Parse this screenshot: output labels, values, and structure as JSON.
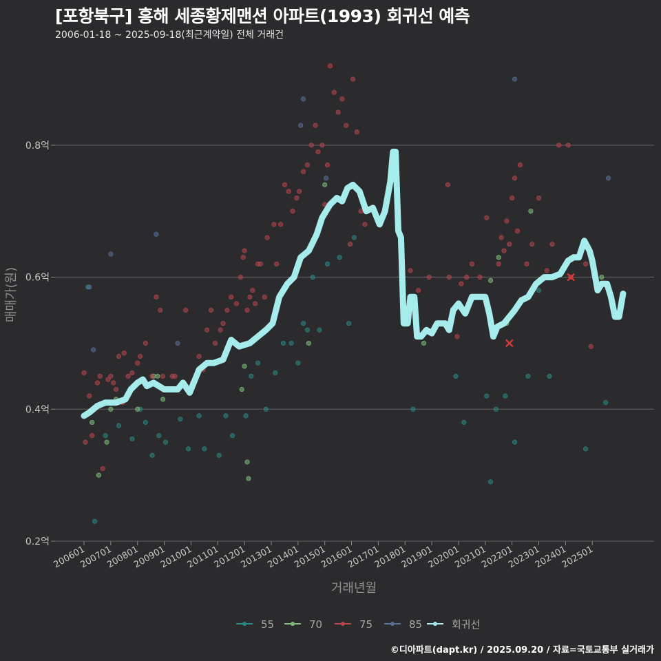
{
  "title": "[포항북구] 흥해 세종황제맨션 아파트(1993) 회귀선 예측",
  "subtitle": "2006-01-18 ~ 2025-09-18(최근계약일) 전체 거래건",
  "caption": "©디아파트(dapt.kr) / 2025.09.20 / 자료=국토교통부 실거래가",
  "chart_data": {
    "type": "scatter",
    "xlabel": "거래년월",
    "ylabel": "매매가(원)",
    "ylim": [
      0.2,
      0.9
    ],
    "y_ticks": [
      {
        "value": 0.2,
        "label": "0.2억"
      },
      {
        "value": 0.4,
        "label": "0.4억"
      },
      {
        "value": 0.6,
        "label": "0.6억"
      },
      {
        "value": 0.8,
        "label": "0.8억"
      }
    ],
    "x_ticks": [
      "200601",
      "200701",
      "200801",
      "200901",
      "201001",
      "201101",
      "201201",
      "201301",
      "201401",
      "201501",
      "201601",
      "201701",
      "201801",
      "201901",
      "202001",
      "202101",
      "202201",
      "202301",
      "202401",
      "202501"
    ],
    "grid": true,
    "legend_position": "bottom",
    "series": [
      {
        "name": "55",
        "color": "#2a8a86",
        "points": [
          [
            2006.15,
            0.585
          ],
          [
            2006.4,
            0.23
          ],
          [
            2006.8,
            0.36
          ],
          [
            2007.3,
            0.375
          ],
          [
            2007.8,
            0.355
          ],
          [
            2008.1,
            0.4
          ],
          [
            2008.3,
            0.38
          ],
          [
            2008.55,
            0.33
          ],
          [
            2008.8,
            0.36
          ],
          [
            2009.05,
            0.35
          ],
          [
            2009.6,
            0.385
          ],
          [
            2009.9,
            0.34
          ],
          [
            2010.3,
            0.39
          ],
          [
            2010.5,
            0.34
          ],
          [
            2011.05,
            0.33
          ],
          [
            2011.3,
            0.39
          ],
          [
            2011.55,
            0.36
          ],
          [
            2012.05,
            0.39
          ],
          [
            2012.25,
            0.45
          ],
          [
            2012.5,
            0.47
          ],
          [
            2012.8,
            0.4
          ],
          [
            2013.15,
            0.455
          ],
          [
            2013.45,
            0.5
          ],
          [
            2013.75,
            0.5
          ],
          [
            2014.0,
            0.47
          ],
          [
            2014.2,
            0.53
          ],
          [
            2014.35,
            0.52
          ],
          [
            2014.55,
            0.6
          ],
          [
            2014.8,
            0.52
          ],
          [
            2015.1,
            0.62
          ],
          [
            2015.55,
            0.63
          ],
          [
            2015.9,
            0.53
          ],
          [
            2016.1,
            0.66
          ],
          [
            2018.3,
            0.4
          ],
          [
            2019.9,
            0.45
          ],
          [
            2020.2,
            0.38
          ],
          [
            2021.05,
            0.42
          ],
          [
            2021.2,
            0.29
          ],
          [
            2021.4,
            0.4
          ],
          [
            2021.75,
            0.42
          ],
          [
            2022.1,
            0.35
          ],
          [
            2022.6,
            0.45
          ],
          [
            2023.0,
            0.58
          ],
          [
            2023.4,
            0.45
          ],
          [
            2024.75,
            0.34
          ],
          [
            2025.5,
            0.41
          ]
        ]
      },
      {
        "name": "70",
        "color": "#7fc17a",
        "points": [
          [
            2006.3,
            0.38
          ],
          [
            2006.55,
            0.3
          ],
          [
            2006.85,
            0.35
          ],
          [
            2007.0,
            0.4
          ],
          [
            2007.2,
            0.415
          ],
          [
            2008.0,
            0.4
          ],
          [
            2008.6,
            0.45
          ],
          [
            2008.75,
            0.45
          ],
          [
            2008.95,
            0.415
          ],
          [
            2011.9,
            0.43
          ],
          [
            2012.0,
            0.465
          ],
          [
            2012.1,
            0.32
          ],
          [
            2012.15,
            0.295
          ],
          [
            2014.4,
            0.5
          ],
          [
            2015.0,
            0.74
          ],
          [
            2018.7,
            0.5
          ],
          [
            2021.2,
            0.595
          ],
          [
            2021.5,
            0.63
          ],
          [
            2021.8,
            0.53
          ],
          [
            2022.7,
            0.7
          ],
          [
            2025.35,
            0.6
          ]
        ]
      },
      {
        "name": "75",
        "color": "#b8474c",
        "points": [
          [
            2006.0,
            0.455
          ],
          [
            2006.05,
            0.35
          ],
          [
            2006.2,
            0.42
          ],
          [
            2006.3,
            0.36
          ],
          [
            2006.5,
            0.44
          ],
          [
            2006.6,
            0.45
          ],
          [
            2006.7,
            0.31
          ],
          [
            2006.9,
            0.445
          ],
          [
            2007.0,
            0.45
          ],
          [
            2007.1,
            0.44
          ],
          [
            2007.2,
            0.43
          ],
          [
            2007.3,
            0.48
          ],
          [
            2007.45,
            0.41
          ],
          [
            2007.5,
            0.485
          ],
          [
            2007.65,
            0.45
          ],
          [
            2007.8,
            0.455
          ],
          [
            2008.0,
            0.47
          ],
          [
            2008.1,
            0.48
          ],
          [
            2008.3,
            0.5
          ],
          [
            2008.55,
            0.45
          ],
          [
            2008.7,
            0.57
          ],
          [
            2008.85,
            0.55
          ],
          [
            2008.95,
            0.45
          ],
          [
            2009.3,
            0.45
          ],
          [
            2009.4,
            0.45
          ],
          [
            2009.8,
            0.55
          ],
          [
            2010.05,
            0.44
          ],
          [
            2010.3,
            0.48
          ],
          [
            2010.45,
            0.46
          ],
          [
            2010.6,
            0.52
          ],
          [
            2010.75,
            0.55
          ],
          [
            2010.9,
            0.5
          ],
          [
            2011.1,
            0.52
          ],
          [
            2011.2,
            0.53
          ],
          [
            2011.35,
            0.55
          ],
          [
            2011.5,
            0.57
          ],
          [
            2011.7,
            0.56
          ],
          [
            2011.85,
            0.6
          ],
          [
            2011.95,
            0.63
          ],
          [
            2012.0,
            0.64
          ],
          [
            2012.1,
            0.55
          ],
          [
            2012.2,
            0.57
          ],
          [
            2012.3,
            0.58
          ],
          [
            2012.4,
            0.56
          ],
          [
            2012.5,
            0.62
          ],
          [
            2012.6,
            0.62
          ],
          [
            2012.75,
            0.57
          ],
          [
            2012.85,
            0.66
          ],
          [
            2013.1,
            0.68
          ],
          [
            2013.2,
            0.62
          ],
          [
            2013.35,
            0.68
          ],
          [
            2013.5,
            0.74
          ],
          [
            2013.65,
            0.73
          ],
          [
            2013.8,
            0.7
          ],
          [
            2013.95,
            0.72
          ],
          [
            2014.05,
            0.73
          ],
          [
            2014.2,
            0.76
          ],
          [
            2014.35,
            0.77
          ],
          [
            2014.5,
            0.8
          ],
          [
            2014.65,
            0.83
          ],
          [
            2014.75,
            0.79
          ],
          [
            2014.9,
            0.8
          ],
          [
            2015.0,
            0.71
          ],
          [
            2015.1,
            0.77
          ],
          [
            2015.2,
            0.92
          ],
          [
            2015.35,
            0.88
          ],
          [
            2015.5,
            0.85
          ],
          [
            2015.65,
            0.87
          ],
          [
            2015.8,
            0.83
          ],
          [
            2015.95,
            0.65
          ],
          [
            2016.05,
            0.9
          ],
          [
            2016.2,
            0.82
          ],
          [
            2016.35,
            0.7
          ],
          [
            2016.5,
            0.68
          ],
          [
            2018.2,
            0.61
          ],
          [
            2018.5,
            0.58
          ],
          [
            2018.9,
            0.6
          ],
          [
            2019.6,
            0.74
          ],
          [
            2019.65,
            0.6
          ],
          [
            2019.95,
            0.51
          ],
          [
            2020.1,
            0.59
          ],
          [
            2020.3,
            0.6
          ],
          [
            2020.5,
            0.62
          ],
          [
            2020.8,
            0.6
          ],
          [
            2021.05,
            0.69
          ],
          [
            2021.5,
            0.62
          ],
          [
            2021.6,
            0.66
          ],
          [
            2021.7,
            0.64
          ],
          [
            2021.8,
            0.685
          ],
          [
            2021.9,
            0.65
          ],
          [
            2022.0,
            0.72
          ],
          [
            2022.1,
            0.75
          ],
          [
            2022.2,
            0.67
          ],
          [
            2022.3,
            0.77
          ],
          [
            2022.55,
            0.62
          ],
          [
            2022.75,
            0.65
          ],
          [
            2023.0,
            0.72
          ],
          [
            2023.3,
            0.61
          ],
          [
            2023.5,
            0.65
          ],
          [
            2023.75,
            0.8
          ],
          [
            2024.1,
            0.8
          ],
          [
            2024.2,
            0.6
          ],
          [
            2024.75,
            0.62
          ],
          [
            2024.95,
            0.495
          ]
        ]
      },
      {
        "name": "85",
        "color": "#5a6f9a",
        "points": [
          [
            2006.2,
            0.585
          ],
          [
            2006.35,
            0.49
          ],
          [
            2007.0,
            0.635
          ],
          [
            2008.7,
            0.665
          ],
          [
            2009.5,
            0.5
          ],
          [
            2014.1,
            0.83
          ],
          [
            2014.2,
            0.87
          ],
          [
            2015.05,
            0.75
          ],
          [
            2022.1,
            0.9
          ],
          [
            2025.6,
            0.75
          ]
        ]
      }
    ],
    "highlight_markers": [
      {
        "x": 2021.9,
        "y": 0.5,
        "shape": "x",
        "color": "#d93a3a"
      },
      {
        "x": 2024.2,
        "y": 0.6,
        "shape": "x",
        "color": "#d93a3a"
      }
    ],
    "regression": {
      "name": "회귀선",
      "color": "#a6ecec",
      "points": [
        [
          2006.0,
          0.39
        ],
        [
          2006.2,
          0.395
        ],
        [
          2006.5,
          0.405
        ],
        [
          2006.8,
          0.41
        ],
        [
          2007.2,
          0.41
        ],
        [
          2007.55,
          0.415
        ],
        [
          2007.75,
          0.43
        ],
        [
          2008.0,
          0.44
        ],
        [
          2008.2,
          0.445
        ],
        [
          2008.35,
          0.435
        ],
        [
          2008.6,
          0.44
        ],
        [
          2009.0,
          0.43
        ],
        [
          2009.3,
          0.43
        ],
        [
          2009.5,
          0.43
        ],
        [
          2009.7,
          0.44
        ],
        [
          2009.95,
          0.425
        ],
        [
          2010.3,
          0.46
        ],
        [
          2010.6,
          0.47
        ],
        [
          2010.85,
          0.47
        ],
        [
          2011.2,
          0.475
        ],
        [
          2011.5,
          0.505
        ],
        [
          2011.8,
          0.495
        ],
        [
          2012.2,
          0.5
        ],
        [
          2012.5,
          0.51
        ],
        [
          2012.8,
          0.52
        ],
        [
          2013.05,
          0.53
        ],
        [
          2013.3,
          0.57
        ],
        [
          2013.6,
          0.59
        ],
        [
          2013.85,
          0.6
        ],
        [
          2014.1,
          0.63
        ],
        [
          2014.4,
          0.64
        ],
        [
          2014.7,
          0.665
        ],
        [
          2014.9,
          0.69
        ],
        [
          2015.2,
          0.71
        ],
        [
          2015.45,
          0.72
        ],
        [
          2015.65,
          0.715
        ],
        [
          2015.85,
          0.735
        ],
        [
          2016.05,
          0.74
        ],
        [
          2016.3,
          0.73
        ],
        [
          2016.55,
          0.7
        ],
        [
          2016.8,
          0.705
        ],
        [
          2017.05,
          0.68
        ],
        [
          2017.25,
          0.7
        ],
        [
          2017.45,
          0.745
        ],
        [
          2017.55,
          0.79
        ],
        [
          2017.65,
          0.79
        ],
        [
          2017.75,
          0.67
        ],
        [
          2017.85,
          0.66
        ],
        [
          2017.95,
          0.53
        ],
        [
          2018.1,
          0.53
        ],
        [
          2018.2,
          0.57
        ],
        [
          2018.35,
          0.57
        ],
        [
          2018.45,
          0.51
        ],
        [
          2018.6,
          0.51
        ],
        [
          2018.8,
          0.52
        ],
        [
          2019.0,
          0.515
        ],
        [
          2019.2,
          0.53
        ],
        [
          2019.5,
          0.53
        ],
        [
          2019.65,
          0.52
        ],
        [
          2019.8,
          0.55
        ],
        [
          2020.0,
          0.56
        ],
        [
          2020.25,
          0.545
        ],
        [
          2020.5,
          0.57
        ],
        [
          2020.8,
          0.57
        ],
        [
          2021.0,
          0.57
        ],
        [
          2021.15,
          0.545
        ],
        [
          2021.3,
          0.51
        ],
        [
          2021.45,
          0.525
        ],
        [
          2021.7,
          0.53
        ],
        [
          2021.9,
          0.54
        ],
        [
          2022.1,
          0.55
        ],
        [
          2022.35,
          0.565
        ],
        [
          2022.6,
          0.57
        ],
        [
          2022.9,
          0.59
        ],
        [
          2023.2,
          0.6
        ],
        [
          2023.5,
          0.6
        ],
        [
          2023.8,
          0.605
        ],
        [
          2024.1,
          0.625
        ],
        [
          2024.3,
          0.63
        ],
        [
          2024.5,
          0.63
        ],
        [
          2024.7,
          0.655
        ],
        [
          2024.9,
          0.64
        ],
        [
          2025.0,
          0.625
        ],
        [
          2025.2,
          0.58
        ],
        [
          2025.35,
          0.59
        ],
        [
          2025.55,
          0.59
        ],
        [
          2025.7,
          0.57
        ],
        [
          2025.85,
          0.54
        ],
        [
          2026.0,
          0.54
        ],
        [
          2026.15,
          0.575
        ]
      ]
    }
  }
}
